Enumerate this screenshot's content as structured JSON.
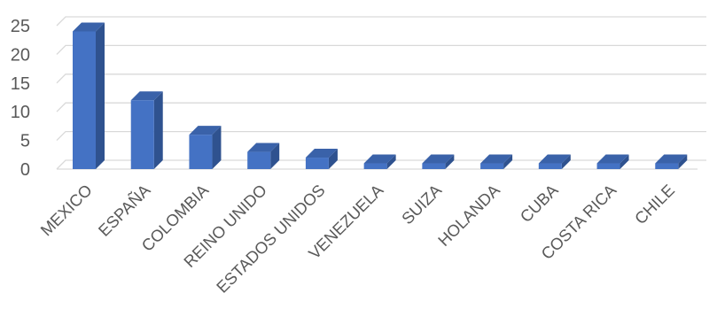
{
  "chart_data": {
    "type": "bar",
    "style": "3d-column",
    "categories": [
      "MEXICO",
      "ESPAÑA",
      "COLOMBIA",
      "REINO UNIDO",
      "ESTADOS UNIDOS",
      "VENEZUELA",
      "SUIZA",
      "HOLANDA",
      "CUBA",
      "COSTA RICA",
      "CHILE"
    ],
    "values": [
      24,
      12,
      6,
      3,
      2,
      1,
      1,
      1,
      1,
      1,
      1
    ],
    "title": "",
    "xlabel": "",
    "ylabel": "",
    "ylim": [
      0,
      25
    ],
    "yticks": [
      "0",
      "5",
      "10",
      "15",
      "20",
      "25"
    ],
    "grid": true,
    "legend": "none",
    "colors": {
      "bar_front": "#4472C4",
      "bar_side": "#2F528F",
      "bar_top": "#3A62A9",
      "gridline": "#D9D9D9",
      "text": "#595959"
    }
  }
}
